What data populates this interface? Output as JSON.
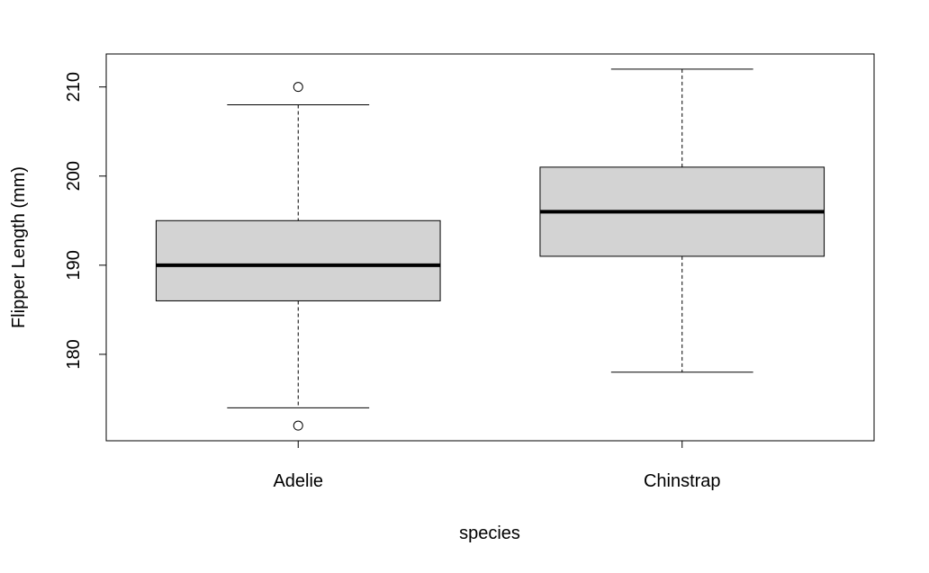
{
  "chart_data": {
    "type": "boxplot",
    "xlabel": "species",
    "ylabel": "Flipper Length (mm)",
    "ylim": [
      170.3,
      213.7
    ],
    "yticks": [
      180,
      190,
      200,
      210
    ],
    "categories": [
      "Adelie",
      "Chinstrap"
    ],
    "boxes": [
      {
        "name": "Adelie",
        "lower_whisker": 174,
        "q1": 186,
        "median": 190,
        "q3": 195,
        "upper_whisker": 208,
        "outliers": [
          172,
          210
        ]
      },
      {
        "name": "Chinstrap",
        "lower_whisker": 178,
        "q1": 191,
        "median": 196,
        "q3": 201,
        "upper_whisker": 212,
        "outliers": []
      }
    ],
    "box_fill": "#d3d3d3",
    "grid": false
  }
}
